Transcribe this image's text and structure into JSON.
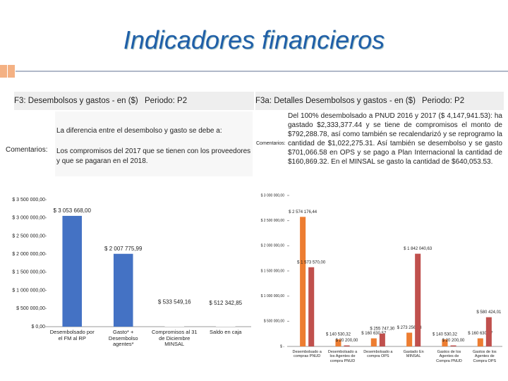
{
  "slide_title": "Indicadores financieros",
  "left_panel": {
    "header": "F3: Desembolsos y gastos - en ($)",
    "period": "Periodo: P2",
    "comments_label": "Comentarios:",
    "intro": "La diferencia entre el desembolso y gasto se debe a:",
    "comment": "Los compromisos del 2017 que se tienen con los proveedores y que se pagaran en el 2018."
  },
  "right_panel": {
    "header": "F3a: Detalles Desembolsos y gastos - en ($)",
    "period": "Periodo: P2",
    "comments_label": "Comentarios:",
    "comment": "Del 100% desembolsado a PNUD 2016 y 2017 ($ 4,147,941.53): ha gastado $2,333,377.44 y se tiene de compromisos el monto de $792,288.78, así como también se recalendarizó y se reprogramo la cantidad de $1,022,275.31. Así también se desembolso y se gasto $701,066.58 en OPS y se pago a Plan Internacional la cantidad de $160,869.32. En el MINSAL se gasto la cantidad de $640,053.53."
  },
  "chart_data": [
    {
      "type": "bar",
      "categories": [
        "Desembolsado por el FM al RP",
        "Gasto* + Desembolso agentes*",
        "Compromisos al 31 de Diciembre MINSAL",
        "Saldo en caja"
      ],
      "values": [
        3053668,
        2007775.99,
        533549.16,
        512342.85
      ],
      "value_labels": [
        "$ 3 053 668,00",
        "$ 2 007 775,99",
        "$ 533 549,16",
        "$ 512 342,85"
      ],
      "colors": [
        "#4472c4",
        "#4472c4",
        "#ffffff",
        "#ffffff"
      ],
      "ylim": [
        0,
        3500000
      ],
      "yticks": [
        {
          "value": 0,
          "label": "$ 0,00"
        },
        {
          "value": 500000,
          "label": "$ 500 000,00"
        },
        {
          "value": 1000000,
          "label": "$ 1 000 000,00"
        },
        {
          "value": 1500000,
          "label": "$ 1 500 000,00"
        },
        {
          "value": 2000000,
          "label": "$ 2 000 000,00"
        },
        {
          "value": 2500000,
          "label": "$ 2 500 000,00"
        },
        {
          "value": 3000000,
          "label": "$ 3 000 000,00"
        },
        {
          "value": 3500000,
          "label": "$ 3 500 000,00"
        }
      ]
    },
    {
      "type": "grouped-bar",
      "categories": [
        "Desembolsado a compras PNUD",
        "Desembolsado a los Agentes de compra PNUD",
        "Desembolsado a compra OPS",
        "Gastado En MINSAL",
        "Gastos de los Agentes de Compra PNUD",
        "Gastos de los Agentes de Compra OPS"
      ],
      "series": [
        {
          "color": "#ed7d31",
          "values": [
            2574176.44,
            140530.32,
            160630.57,
            273256.33,
            140530.32,
            160630.57
          ],
          "value_labels": [
            "$ 2 574 176,44",
            "$ 140 530,32",
            "$ 160 630,57",
            "$ 273 256,33",
            "$ 140 530,32",
            "$ 160 630,57"
          ]
        },
        {
          "color": "#c0504d",
          "values": [
            1573570,
            20200,
            255747.3,
            1842040.63,
            20200,
            580424.01
          ],
          "value_labels": [
            "$ 1 573 570,00",
            "$ 20 200,00",
            "$ 255 747,30",
            "$ 1 842 040,63",
            "$ 20 200,00",
            "$ 580 424,01"
          ]
        }
      ],
      "ylim": [
        0,
        3000000
      ],
      "yticks": [
        {
          "value": 0,
          "label": "$ -"
        },
        {
          "value": 500000,
          "label": "$ 500 000,00"
        },
        {
          "value": 1000000,
          "label": "$ 1 000 000,00"
        },
        {
          "value": 1500000,
          "label": "$ 1 500 000,00"
        },
        {
          "value": 2000000,
          "label": "$ 2 000 000,00"
        },
        {
          "value": 2500000,
          "label": "$ 2 500 000,00"
        },
        {
          "value": 3000000,
          "label": "$ 3 000 000,00"
        }
      ]
    }
  ]
}
